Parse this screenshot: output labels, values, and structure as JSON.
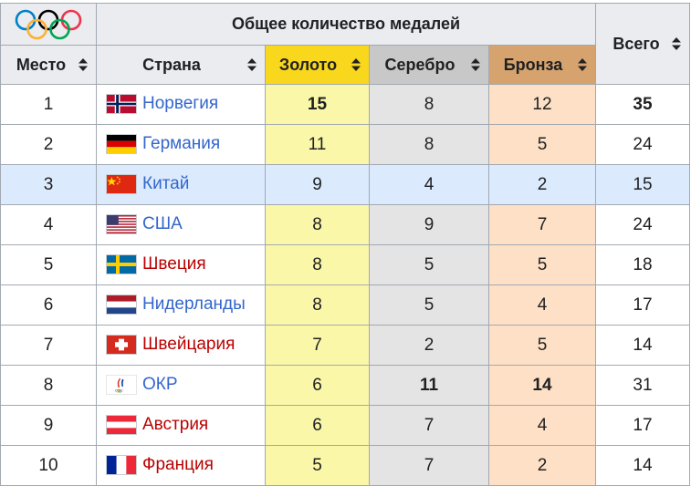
{
  "header": {
    "group_title": "Общее количество медалей",
    "col_rank": "Место",
    "col_country": "Страна",
    "col_gold": "Золото",
    "col_silver": "Серебро",
    "col_bronze": "Бронза",
    "col_total": "Всего",
    "logo_icon": "olympic-rings-icon"
  },
  "colors": {
    "gold_header": "#f9d71c",
    "silver_header": "#c8c8c8",
    "bronze_header": "#d6a36f",
    "gold_cell": "#fbf7a8",
    "silver_cell": "#e4e4e4",
    "bronze_cell": "#fde0c5",
    "link": "#3366cc",
    "redlink": "#ba0000",
    "highlight_row": "#dbeafd"
  },
  "rows": [
    {
      "rank": "1",
      "country": "Норвегия",
      "flag": "norway-flag-icon",
      "gold": "15",
      "silver": "8",
      "bronze": "12",
      "total": "35"
    },
    {
      "rank": "2",
      "country": "Германия",
      "flag": "germany-flag-icon",
      "gold": "11",
      "silver": "8",
      "bronze": "5",
      "total": "24"
    },
    {
      "rank": "3",
      "country": "Китай",
      "flag": "china-flag-icon",
      "gold": "9",
      "silver": "4",
      "bronze": "2",
      "total": "15"
    },
    {
      "rank": "4",
      "country": "США",
      "flag": "usa-flag-icon",
      "gold": "8",
      "silver": "9",
      "bronze": "7",
      "total": "24"
    },
    {
      "rank": "5",
      "country": "Швеция",
      "flag": "sweden-flag-icon",
      "gold": "8",
      "silver": "5",
      "bronze": "5",
      "total": "18"
    },
    {
      "rank": "6",
      "country": "Нидерланды",
      "flag": "netherlands-flag-icon",
      "gold": "8",
      "silver": "5",
      "bronze": "4",
      "total": "17"
    },
    {
      "rank": "7",
      "country": "Швейцария",
      "flag": "switzerland-flag-icon",
      "gold": "7",
      "silver": "2",
      "bronze": "5",
      "total": "14"
    },
    {
      "rank": "8",
      "country": "ОКР",
      "flag": "roc-emblem-icon",
      "gold": "6",
      "silver": "11",
      "bronze": "14",
      "total": "31"
    },
    {
      "rank": "9",
      "country": "Австрия",
      "flag": "austria-flag-icon",
      "gold": "6",
      "silver": "7",
      "bronze": "4",
      "total": "17"
    },
    {
      "rank": "10",
      "country": "Франция",
      "flag": "france-flag-icon",
      "gold": "5",
      "silver": "7",
      "bronze": "2",
      "total": "14"
    }
  ]
}
